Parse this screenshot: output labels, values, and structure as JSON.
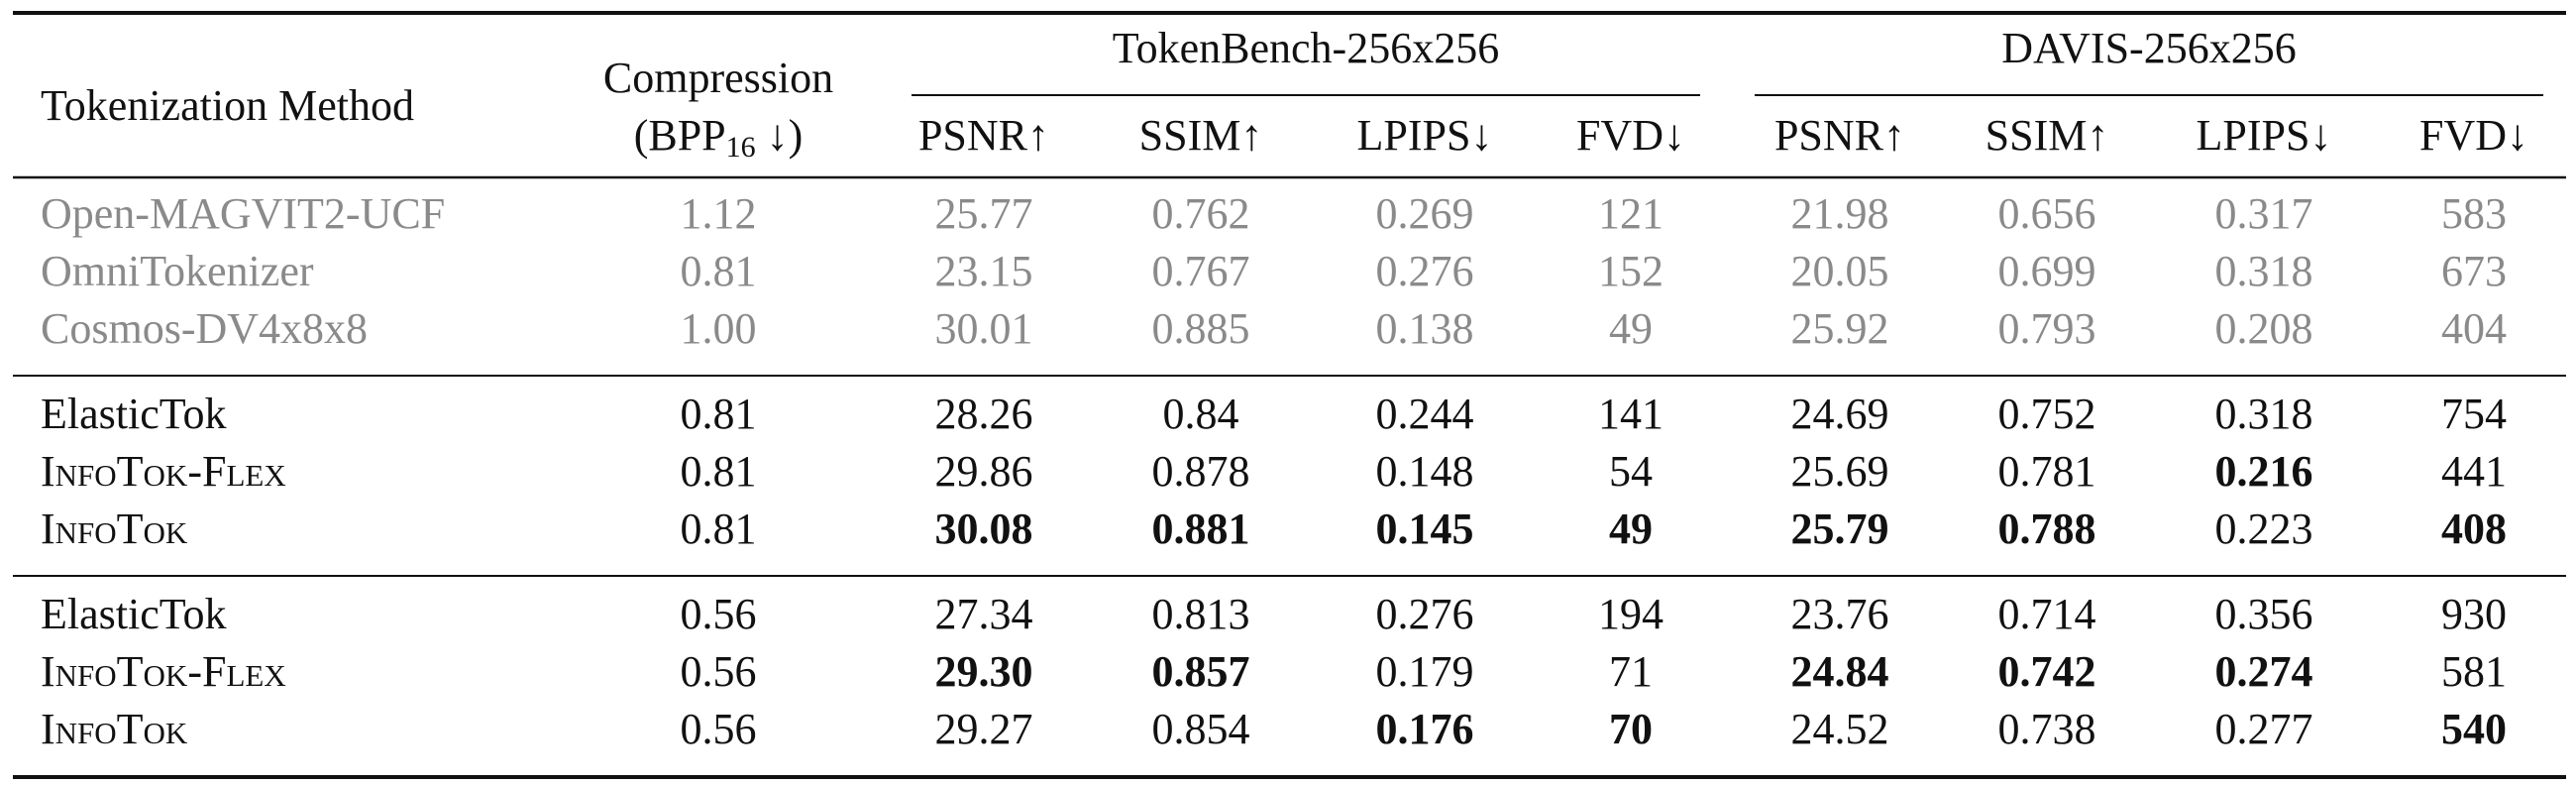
{
  "table": {
    "header": {
      "method": "Tokenization Method",
      "compression": {
        "line1": "Compression",
        "prefix": "(BPP",
        "subscript": "16",
        "suffix": " ↓)"
      },
      "groups": [
        "TokenBench-256x256",
        "DAVIS-256x256"
      ],
      "metrics": [
        "PSNR↑",
        "SSIM↑",
        "LPIPS↓",
        "FVD↓",
        "PSNR↑",
        "SSIM↑",
        "LPIPS↓",
        "FVD↓"
      ]
    },
    "sections": [
      {
        "muted": true,
        "rows": [
          {
            "method": "Open-MAGVIT2-UCF",
            "cells": [
              "1.12",
              "25.77",
              "0.762",
              "0.269",
              "121",
              "21.98",
              "0.656",
              "0.317",
              "583"
            ],
            "bold": []
          },
          {
            "method": "OmniTokenizer",
            "cells": [
              "0.81",
              "23.15",
              "0.767",
              "0.276",
              "152",
              "20.05",
              "0.699",
              "0.318",
              "673"
            ],
            "bold": []
          },
          {
            "method": "Cosmos-DV4x8x8",
            "cells": [
              "1.00",
              "30.01",
              "0.885",
              "0.138",
              "49",
              "25.92",
              "0.793",
              "0.208",
              "404"
            ],
            "bold": []
          }
        ]
      },
      {
        "muted": false,
        "rows": [
          {
            "method": "ElasticTok",
            "cells": [
              "0.81",
              "28.26",
              "0.84",
              "0.244",
              "141",
              "24.69",
              "0.752",
              "0.318",
              "754"
            ],
            "bold": []
          },
          {
            "method": "InfoTok-Flex",
            "smallcaps": true,
            "cells": [
              "0.81",
              "29.86",
              "0.878",
              "0.148",
              "54",
              "25.69",
              "0.781",
              "0.216",
              "441"
            ],
            "bold": [
              7
            ]
          },
          {
            "method": "InfoTok",
            "smallcaps": true,
            "cells": [
              "0.81",
              "30.08",
              "0.881",
              "0.145",
              "49",
              "25.79",
              "0.788",
              "0.223",
              "408"
            ],
            "bold": [
              1,
              2,
              3,
              4,
              5,
              6,
              8
            ]
          }
        ]
      },
      {
        "muted": false,
        "rows": [
          {
            "method": "ElasticTok",
            "cells": [
              "0.56",
              "27.34",
              "0.813",
              "0.276",
              "194",
              "23.76",
              "0.714",
              "0.356",
              "930"
            ],
            "bold": []
          },
          {
            "method": "InfoTok-Flex",
            "smallcaps": true,
            "cells": [
              "0.56",
              "29.30",
              "0.857",
              "0.179",
              "71",
              "24.84",
              "0.742",
              "0.274",
              "581"
            ],
            "bold": [
              1,
              2,
              5,
              6,
              7
            ]
          },
          {
            "method": "InfoTok",
            "smallcaps": true,
            "cells": [
              "0.56",
              "29.27",
              "0.854",
              "0.176",
              "70",
              "24.52",
              "0.738",
              "0.277",
              "540"
            ],
            "bold": [
              3,
              4,
              8
            ]
          }
        ]
      }
    ]
  }
}
